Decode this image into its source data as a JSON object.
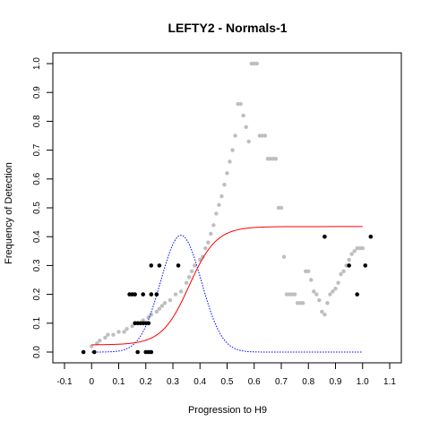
{
  "chart_data": {
    "type": "scatter",
    "title": "LEFTY2 - Normals-1",
    "xlabel": "Progression to H9",
    "ylabel": "Frequency of Detection",
    "xlim": [
      -0.1,
      1.1
    ],
    "ylim": [
      0.0,
      1.0
    ],
    "xticks": [
      "-0.1",
      "0",
      "0.1",
      "0.2",
      "0.3",
      "0.4",
      "0.5",
      "0.6",
      "0.7",
      "0.8",
      "0.9",
      "1.0",
      "1.1"
    ],
    "yticks": [
      "0.0",
      "0.1",
      "0.2",
      "0.3",
      "0.4",
      "0.5",
      "0.6",
      "0.7",
      "0.8",
      "0.9",
      "1.0"
    ],
    "grid": false,
    "legend": "none",
    "colors": {
      "smoothed": "#bebebe",
      "observed": "#000000",
      "logistic_fit": "#ff0000",
      "density": "#0000ff"
    },
    "series": [
      {
        "points": [
          [
            0.0,
            0.02
          ],
          [
            0.02,
            0.03
          ],
          [
            0.03,
            0.04
          ],
          [
            0.05,
            0.05
          ],
          [
            0.06,
            0.06
          ],
          [
            0.08,
            0.06
          ],
          [
            0.1,
            0.07
          ],
          [
            0.12,
            0.07
          ],
          [
            0.13,
            0.08
          ],
          [
            0.15,
            0.09
          ],
          [
            0.17,
            0.1
          ],
          [
            0.19,
            0.11
          ],
          [
            0.21,
            0.12
          ],
          [
            0.22,
            0.13
          ],
          [
            0.24,
            0.14
          ],
          [
            0.25,
            0.15
          ],
          [
            0.26,
            0.16
          ],
          [
            0.27,
            0.17
          ],
          [
            0.29,
            0.18
          ],
          [
            0.31,
            0.2
          ],
          [
            0.33,
            0.21
          ],
          [
            0.35,
            0.24
          ],
          [
            0.36,
            0.26
          ],
          [
            0.37,
            0.28
          ],
          [
            0.38,
            0.3
          ],
          [
            0.4,
            0.32
          ],
          [
            0.41,
            0.33
          ],
          [
            0.42,
            0.36
          ],
          [
            0.43,
            0.38
          ],
          [
            0.44,
            0.41
          ],
          [
            0.45,
            0.44
          ],
          [
            0.46,
            0.48
          ],
          [
            0.47,
            0.51
          ],
          [
            0.48,
            0.54
          ],
          [
            0.49,
            0.58
          ],
          [
            0.5,
            0.62
          ],
          [
            0.51,
            0.66
          ],
          [
            0.52,
            0.7
          ],
          [
            0.53,
            0.75
          ],
          [
            0.54,
            0.86
          ],
          [
            0.55,
            0.86
          ],
          [
            0.56,
            0.82
          ],
          [
            0.57,
            0.78
          ],
          [
            0.58,
            0.73
          ],
          [
            0.59,
            1.0
          ],
          [
            0.6,
            1.0
          ],
          [
            0.61,
            1.0
          ],
          [
            0.62,
            0.75
          ],
          [
            0.63,
            0.75
          ],
          [
            0.64,
            0.75
          ],
          [
            0.65,
            0.67
          ],
          [
            0.66,
            0.67
          ],
          [
            0.67,
            0.67
          ],
          [
            0.68,
            0.67
          ],
          [
            0.69,
            0.5
          ],
          [
            0.7,
            0.5
          ],
          [
            0.71,
            0.33
          ],
          [
            0.72,
            0.2
          ],
          [
            0.73,
            0.2
          ],
          [
            0.74,
            0.2
          ],
          [
            0.75,
            0.2
          ],
          [
            0.76,
            0.17
          ],
          [
            0.77,
            0.17
          ],
          [
            0.78,
            0.17
          ],
          [
            0.79,
            0.28
          ],
          [
            0.8,
            0.28
          ],
          [
            0.81,
            0.25
          ],
          [
            0.82,
            0.21
          ],
          [
            0.83,
            0.2
          ],
          [
            0.84,
            0.18
          ],
          [
            0.85,
            0.14
          ],
          [
            0.86,
            0.13
          ],
          [
            0.87,
            0.17
          ],
          [
            0.88,
            0.2
          ],
          [
            0.89,
            0.21
          ],
          [
            0.9,
            0.22
          ],
          [
            0.91,
            0.24
          ],
          [
            0.92,
            0.27
          ],
          [
            0.93,
            0.28
          ],
          [
            0.94,
            0.3
          ],
          [
            0.95,
            0.32
          ],
          [
            0.96,
            0.34
          ],
          [
            0.97,
            0.35
          ],
          [
            0.98,
            0.36
          ],
          [
            0.99,
            0.36
          ],
          [
            1.0,
            0.36
          ]
        ]
      },
      {
        "points": [
          [
            -0.03,
            0.0
          ],
          [
            0.01,
            0.0
          ],
          [
            0.14,
            0.2
          ],
          [
            0.15,
            0.2
          ],
          [
            0.16,
            0.2
          ],
          [
            0.16,
            0.1
          ],
          [
            0.17,
            0.1
          ],
          [
            0.17,
            0.0
          ],
          [
            0.18,
            0.1
          ],
          [
            0.19,
            0.1
          ],
          [
            0.19,
            0.2
          ],
          [
            0.2,
            0.1
          ],
          [
            0.2,
            0.0
          ],
          [
            0.21,
            0.1
          ],
          [
            0.21,
            0.0
          ],
          [
            0.22,
            0.2
          ],
          [
            0.22,
            0.3
          ],
          [
            0.22,
            0.0
          ],
          [
            0.24,
            0.2
          ],
          [
            0.25,
            0.3
          ],
          [
            0.32,
            0.3
          ],
          [
            0.86,
            0.4
          ],
          [
            0.95,
            0.3
          ],
          [
            0.98,
            0.2
          ],
          [
            1.01,
            0.3
          ],
          [
            1.03,
            0.4
          ]
        ]
      }
    ],
    "fit_logistic": {
      "lower": 0.025,
      "upper": 0.435,
      "midpoint": 0.36,
      "scale": 0.05,
      "x_range": [
        0.0,
        1.0
      ]
    },
    "fit_density": {
      "peak": 0.405,
      "center": 0.33,
      "sd": 0.075,
      "x_range": [
        0.0,
        1.0
      ]
    }
  }
}
